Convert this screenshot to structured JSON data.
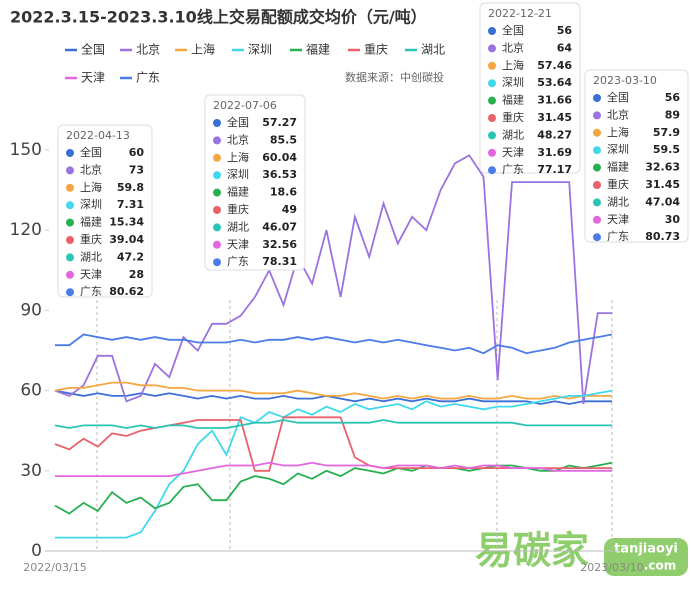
{
  "chart_data": {
    "type": "line",
    "title": "2022.3.15-2023.3.10线上交易配额成交均价（元/吨）",
    "source": "数据来源：中创碳投",
    "watermark": {
      "brand": "易碳家",
      "site": "tanjiaoyi",
      "domain": ".com"
    },
    "ylim": [
      0,
      150
    ],
    "yticks": [
      0,
      30,
      60,
      90,
      120,
      150
    ],
    "categories": [
      "2022/03/15",
      null,
      null,
      null,
      null,
      null,
      null,
      null,
      null,
      null,
      null,
      null,
      null,
      null,
      null,
      null,
      null,
      null,
      null,
      null,
      null,
      null,
      null,
      null,
      null,
      null,
      null,
      null,
      null,
      null,
      null,
      null,
      null,
      null,
      null,
      null,
      null,
      null,
      null,
      "2023/03/10"
    ],
    "series": [
      {
        "name": "全国",
        "color": "#3b6fd6",
        "values": [
          60,
          59,
          58,
          59,
          58,
          58,
          59,
          58,
          59,
          58,
          57,
          58,
          57,
          58,
          57,
          57,
          58,
          57,
          57,
          58,
          57,
          56,
          57,
          56,
          57,
          56,
          57,
          56,
          56,
          57,
          56,
          56,
          56,
          56,
          55,
          56,
          55,
          56,
          56,
          56
        ]
      },
      {
        "name": "北京",
        "color": "#9b72e0",
        "values": [
          60,
          58,
          62,
          73,
          73,
          56,
          58,
          70,
          65,
          80,
          75,
          85,
          85,
          88,
          95,
          105,
          92,
          110,
          100,
          120,
          95,
          125,
          110,
          130,
          115,
          125,
          120,
          135,
          145,
          148,
          140,
          64,
          138,
          138,
          138,
          138,
          138,
          55,
          89,
          89
        ]
      },
      {
        "name": "上海",
        "color": "#f5a640",
        "values": [
          60,
          61,
          61,
          62,
          63,
          63,
          62,
          62,
          61,
          61,
          60,
          60,
          60,
          60,
          59,
          59,
          59,
          60,
          59,
          58,
          58,
          59,
          58,
          57,
          58,
          57,
          58,
          57,
          57,
          58,
          57,
          57,
          58,
          57,
          57,
          58,
          57,
          58,
          58,
          58
        ]
      },
      {
        "name": "深圳",
        "color": "#40d8ec",
        "values": [
          5,
          5,
          5,
          5,
          5,
          5,
          7,
          15,
          25,
          30,
          40,
          45,
          36,
          50,
          48,
          52,
          50,
          53,
          51,
          54,
          52,
          55,
          53,
          54,
          55,
          53,
          56,
          54,
          55,
          54,
          53,
          54,
          54,
          55,
          56,
          57,
          58,
          58,
          59,
          60
        ]
      },
      {
        "name": "福建",
        "color": "#27b050",
        "values": [
          17,
          14,
          18,
          15,
          22,
          18,
          20,
          16,
          18,
          24,
          25,
          19,
          19,
          26,
          28,
          27,
          25,
          29,
          27,
          30,
          28,
          31,
          30,
          29,
          31,
          30,
          32,
          31,
          31,
          30,
          31,
          32,
          32,
          31,
          30,
          30,
          32,
          31,
          32,
          33
        ]
      },
      {
        "name": "重庆",
        "color": "#e8616b",
        "values": [
          40,
          38,
          42,
          39,
          44,
          43,
          45,
          46,
          47,
          48,
          49,
          49,
          49,
          49,
          30,
          30,
          50,
          50,
          50,
          50,
          50,
          35,
          32,
          31,
          31,
          31,
          31,
          31,
          31,
          31,
          31,
          31,
          31,
          31,
          31,
          31,
          31,
          31,
          31,
          31
        ]
      },
      {
        "name": "湖北",
        "color": "#2bc4b4",
        "values": [
          47,
          46,
          47,
          47,
          47,
          46,
          47,
          46,
          47,
          47,
          46,
          46,
          46,
          47,
          48,
          48,
          49,
          48,
          48,
          48,
          48,
          48,
          48,
          49,
          48,
          48,
          48,
          48,
          48,
          48,
          48,
          48,
          48,
          47,
          47,
          47,
          47,
          47,
          47,
          47
        ]
      },
      {
        "name": "天津",
        "color": "#e366e0",
        "values": [
          28,
          28,
          28,
          28,
          28,
          28,
          28,
          28,
          28,
          29,
          30,
          31,
          32,
          32,
          32,
          33,
          32,
          32,
          33,
          32,
          32,
          32,
          32,
          31,
          32,
          32,
          32,
          31,
          32,
          31,
          32,
          32,
          31,
          31,
          31,
          30,
          30,
          30,
          30,
          30
        ]
      },
      {
        "name": "广东",
        "color": "#4a7ce8",
        "values": [
          77,
          77,
          81,
          80,
          79,
          80,
          79,
          80,
          79,
          79,
          78,
          78,
          78,
          79,
          78,
          79,
          79,
          80,
          79,
          80,
          79,
          78,
          79,
          78,
          79,
          78,
          77,
          76,
          75,
          76,
          74,
          77,
          76,
          74,
          75,
          76,
          78,
          79,
          80,
          81
        ]
      }
    ],
    "tooltips": [
      {
        "date": "2022-04-13",
        "values": [
          60,
          73,
          59.8,
          7.31,
          15.34,
          39.04,
          47.2,
          28,
          80.62
        ]
      },
      {
        "date": "2022-07-06",
        "values": [
          57.27,
          85.5,
          60.04,
          36.53,
          18.6,
          49,
          46.07,
          32.56,
          78.31
        ]
      },
      {
        "date": "2022-12-21",
        "values": [
          56,
          64,
          57.46,
          53.64,
          31.66,
          31.45,
          48.27,
          31.69,
          77.17
        ]
      },
      {
        "date": "2023-03-10",
        "values": [
          56,
          89,
          57.9,
          59.5,
          32.63,
          31.45,
          47.04,
          30,
          80.73
        ]
      }
    ]
  }
}
